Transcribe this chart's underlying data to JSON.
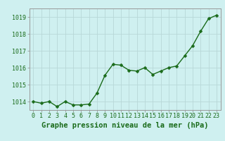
{
  "x": [
    0,
    1,
    2,
    3,
    4,
    5,
    6,
    7,
    8,
    9,
    10,
    11,
    12,
    13,
    14,
    15,
    16,
    17,
    18,
    19,
    20,
    21,
    22,
    23
  ],
  "y": [
    1014.0,
    1013.9,
    1014.0,
    1013.7,
    1014.0,
    1013.8,
    1013.8,
    1013.85,
    1014.5,
    1015.55,
    1016.2,
    1016.15,
    1015.85,
    1015.8,
    1016.0,
    1015.6,
    1015.8,
    1016.0,
    1016.1,
    1016.7,
    1017.3,
    1018.15,
    1018.9,
    1019.1
  ],
  "ylim": [
    1013.5,
    1019.5
  ],
  "yticks": [
    1014,
    1015,
    1016,
    1017,
    1018,
    1019
  ],
  "xticks": [
    0,
    1,
    2,
    3,
    4,
    5,
    6,
    7,
    8,
    9,
    10,
    11,
    12,
    13,
    14,
    15,
    16,
    17,
    18,
    19,
    20,
    21,
    22,
    23
  ],
  "xlabel": "Graphe pression niveau de la mer (hPa)",
  "line_color": "#1a6b1a",
  "marker_color": "#1a6b1a",
  "bg_color": "#cff0f0",
  "grid_color": "#b8d8d8",
  "tick_label_color": "#1a6b1a",
  "xlabel_color": "#1a6b1a",
  "xlabel_fontsize": 7.5,
  "tick_fontsize": 6.0,
  "line_width": 1.0,
  "marker_size": 2.5
}
